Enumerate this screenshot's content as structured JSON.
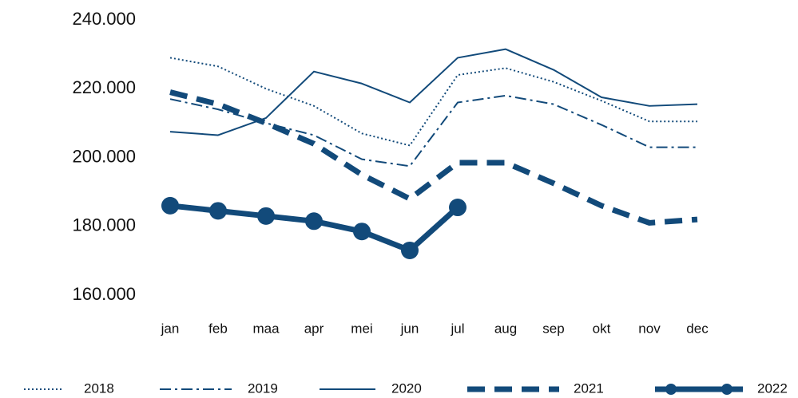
{
  "chart_data": {
    "type": "line",
    "categories": [
      "jan",
      "feb",
      "maa",
      "apr",
      "mei",
      "jun",
      "jul",
      "aug",
      "sep",
      "okt",
      "nov",
      "dec"
    ],
    "ylim": [
      160000,
      240000
    ],
    "yticks": [
      {
        "value": 160000,
        "label": "160.000"
      },
      {
        "value": 180000,
        "label": "180.000"
      },
      {
        "value": 200000,
        "label": "200.000"
      },
      {
        "value": 220000,
        "label": "220.000"
      },
      {
        "value": 240000,
        "label": "240.000"
      }
    ],
    "grid": false,
    "legend": "bottom",
    "series": [
      {
        "name": "2018",
        "color": "#124a7a",
        "style": "dotted",
        "values": [
          229000,
          226500,
          220000,
          215000,
          207000,
          203500,
          224000,
          226000,
          222000,
          216500,
          210500,
          210500
        ]
      },
      {
        "name": "2019",
        "color": "#124a7a",
        "style": "dashdot",
        "values": [
          217000,
          214000,
          210000,
          206500,
          199500,
          197500,
          216000,
          218000,
          215500,
          209500,
          203000,
          203000
        ]
      },
      {
        "name": "2020",
        "color": "#124a7a",
        "style": "solid",
        "values": [
          207500,
          206500,
          211500,
          225000,
          221500,
          216000,
          229000,
          231500,
          225500,
          217500,
          215000,
          215500
        ]
      },
      {
        "name": "2021",
        "color": "#124a7a",
        "style": "dashed",
        "values": [
          219000,
          215500,
          210000,
          204000,
          195000,
          188000,
          198500,
          198500,
          192500,
          186000,
          181000,
          182000
        ]
      },
      {
        "name": "2022",
        "color": "#124a7a",
        "style": "markers",
        "values": [
          186000,
          184500,
          183000,
          181500,
          178500,
          173000,
          185500,
          null,
          null,
          null,
          null,
          null
        ]
      }
    ]
  }
}
